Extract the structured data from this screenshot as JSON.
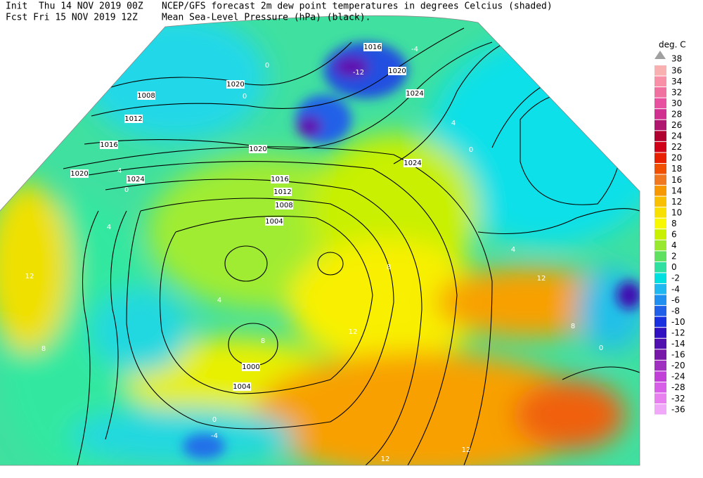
{
  "header": {
    "line1": "Init  Thu 14 NOV 2019 00Z",
    "line2": "Fcst Fri 15 NOV 2019 12Z",
    "line3": "NCEP/GFS forecast 2m dew point temperatures in degrees Celcius (shaded)",
    "line4": "Mean Sea-Level Pressure (hPa) (black)."
  },
  "legend": {
    "title": "deg. C",
    "top": {
      "value": 38,
      "color": "#a0a0a0"
    },
    "levels": [
      {
        "value": 36,
        "color": "#f8b0b0"
      },
      {
        "value": 34,
        "color": "#f890a8"
      },
      {
        "value": 32,
        "color": "#f070a0"
      },
      {
        "value": 30,
        "color": "#e850a0"
      },
      {
        "value": 28,
        "color": "#d03090"
      },
      {
        "value": 26,
        "color": "#b01870"
      },
      {
        "value": 24,
        "color": "#b00030"
      },
      {
        "value": 22,
        "color": "#d00018"
      },
      {
        "value": 20,
        "color": "#e82000"
      },
      {
        "value": 18,
        "color": "#f05000"
      },
      {
        "value": 16,
        "color": "#f07820"
      },
      {
        "value": 14,
        "color": "#f89800"
      },
      {
        "value": 12,
        "color": "#f8c000"
      },
      {
        "value": 10,
        "color": "#f8e000"
      },
      {
        "value": 8,
        "color": "#f8f800"
      },
      {
        "value": 6,
        "color": "#c8f000"
      },
      {
        "value": 4,
        "color": "#98e830"
      },
      {
        "value": 2,
        "color": "#60e060"
      },
      {
        "value": 0,
        "color": "#30e0a0"
      },
      {
        "value": -2,
        "color": "#00e0e0"
      },
      {
        "value": -4,
        "color": "#20b8f0"
      },
      {
        "value": -6,
        "color": "#2090f0"
      },
      {
        "value": -8,
        "color": "#2060e8"
      },
      {
        "value": -10,
        "color": "#1830e0"
      },
      {
        "value": -12,
        "color": "#3010c0"
      },
      {
        "value": -14,
        "color": "#5010b0"
      },
      {
        "value": -16,
        "color": "#7818a8"
      },
      {
        "value": -20,
        "color": "#a030c0"
      },
      {
        "value": -24,
        "color": "#c040d8"
      },
      {
        "value": -28,
        "color": "#d860e8"
      },
      {
        "value": -32,
        "color": "#e880f0"
      },
      {
        "value": -36,
        "color": "#f0a8f8"
      }
    ]
  },
  "isobar_labels": [
    1016,
    1020,
    1024,
    1020,
    1008,
    1012,
    1016,
    1020,
    1024,
    1020,
    1024,
    1016,
    1012,
    1008,
    1004,
    1000,
    1004
  ],
  "dewpoint_labels": [
    0,
    0,
    4,
    0,
    4,
    12,
    8,
    4,
    8,
    12,
    8,
    12,
    8,
    0,
    12,
    12,
    -4,
    0,
    4,
    0,
    4,
    -4,
    -12
  ]
}
